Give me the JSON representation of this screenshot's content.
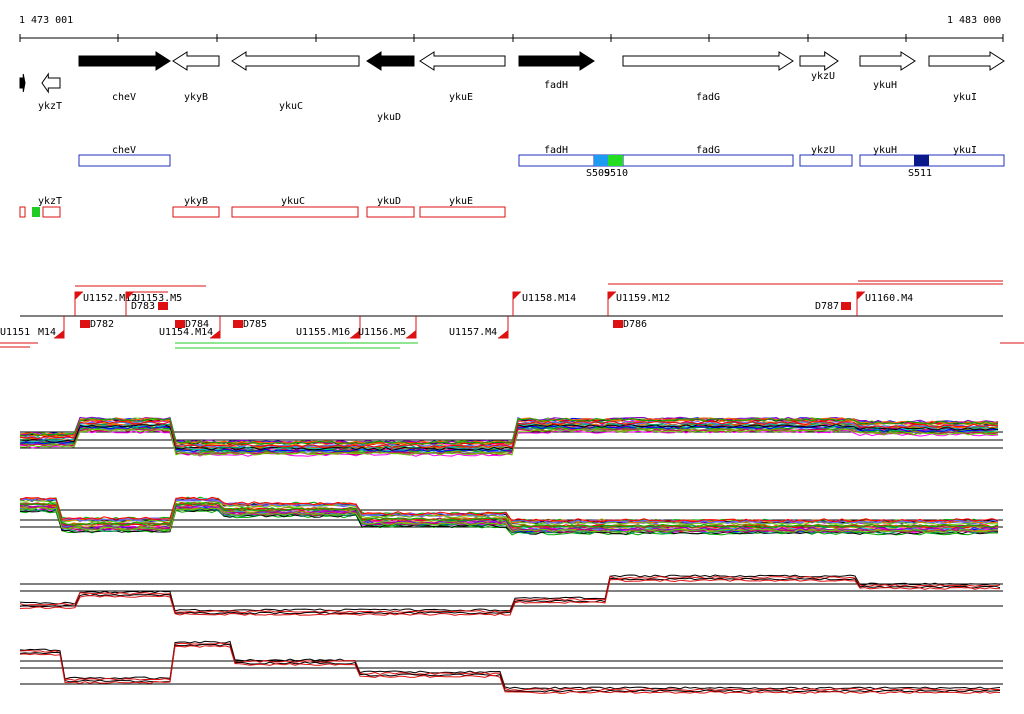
{
  "ruler": {
    "start": "1 473 001",
    "end": "1 483 000"
  },
  "genes": [
    {
      "label": "",
      "dir": "right",
      "filled": true
    },
    {
      "label": "ykzT",
      "dir": "left",
      "filled": false
    },
    {
      "label": "cheV",
      "dir": "right",
      "filled": true
    },
    {
      "label": "ykyB",
      "dir": "left",
      "filled": false
    },
    {
      "label": "ykuC",
      "dir": "left",
      "filled": false
    },
    {
      "label": "ykuD",
      "dir": "left",
      "filled": true
    },
    {
      "label": "ykuE",
      "dir": "left",
      "filled": false
    },
    {
      "label": "fadH",
      "dir": "right",
      "filled": true
    },
    {
      "label": "fadG",
      "dir": "right",
      "filled": false
    },
    {
      "label": "ykzU",
      "dir": "right",
      "filled": false
    },
    {
      "label": "ykuH",
      "dir": "right",
      "filled": false
    },
    {
      "label": "ykuI",
      "dir": "right",
      "filled": false
    }
  ],
  "blue_tracks": [
    {
      "label": "cheV"
    },
    {
      "label": "fadH"
    },
    {
      "label": "fadG"
    },
    {
      "label": "ykzU"
    },
    {
      "label": "ykuH"
    },
    {
      "label": "ykuI"
    }
  ],
  "blue_markers": [
    {
      "label": "S509",
      "color": "#1e9af0"
    },
    {
      "label": "S510",
      "color": "#22dd22"
    },
    {
      "label": "S511",
      "color": "#0a1a8a"
    }
  ],
  "red_tracks": [
    {
      "label": ""
    },
    {
      "label": "ykzT"
    },
    {
      "label": "ykyB"
    },
    {
      "label": "ykuC"
    },
    {
      "label": "ykuD"
    },
    {
      "label": "ykuE"
    }
  ],
  "upstream_labels": [
    "U1152.M12",
    "U1153.M5",
    "U1154.M14",
    "U1155.M16",
    "U1156.M5",
    "U1157.M4",
    "U1158.M14",
    "U1159.M12",
    "U1160.M4",
    "M14",
    "U1151"
  ],
  "downstream_labels": [
    "D782",
    "D783",
    "D784",
    "D785",
    "D786",
    "D787"
  ],
  "panels": [
    {
      "type": "multi"
    },
    {
      "type": "multi"
    },
    {
      "type": "pair"
    },
    {
      "type": "pair"
    }
  ],
  "colors": {
    "gene": "#000000",
    "blue": "#1f2fbf",
    "red": "#dd1111",
    "green": "#22cc22"
  }
}
